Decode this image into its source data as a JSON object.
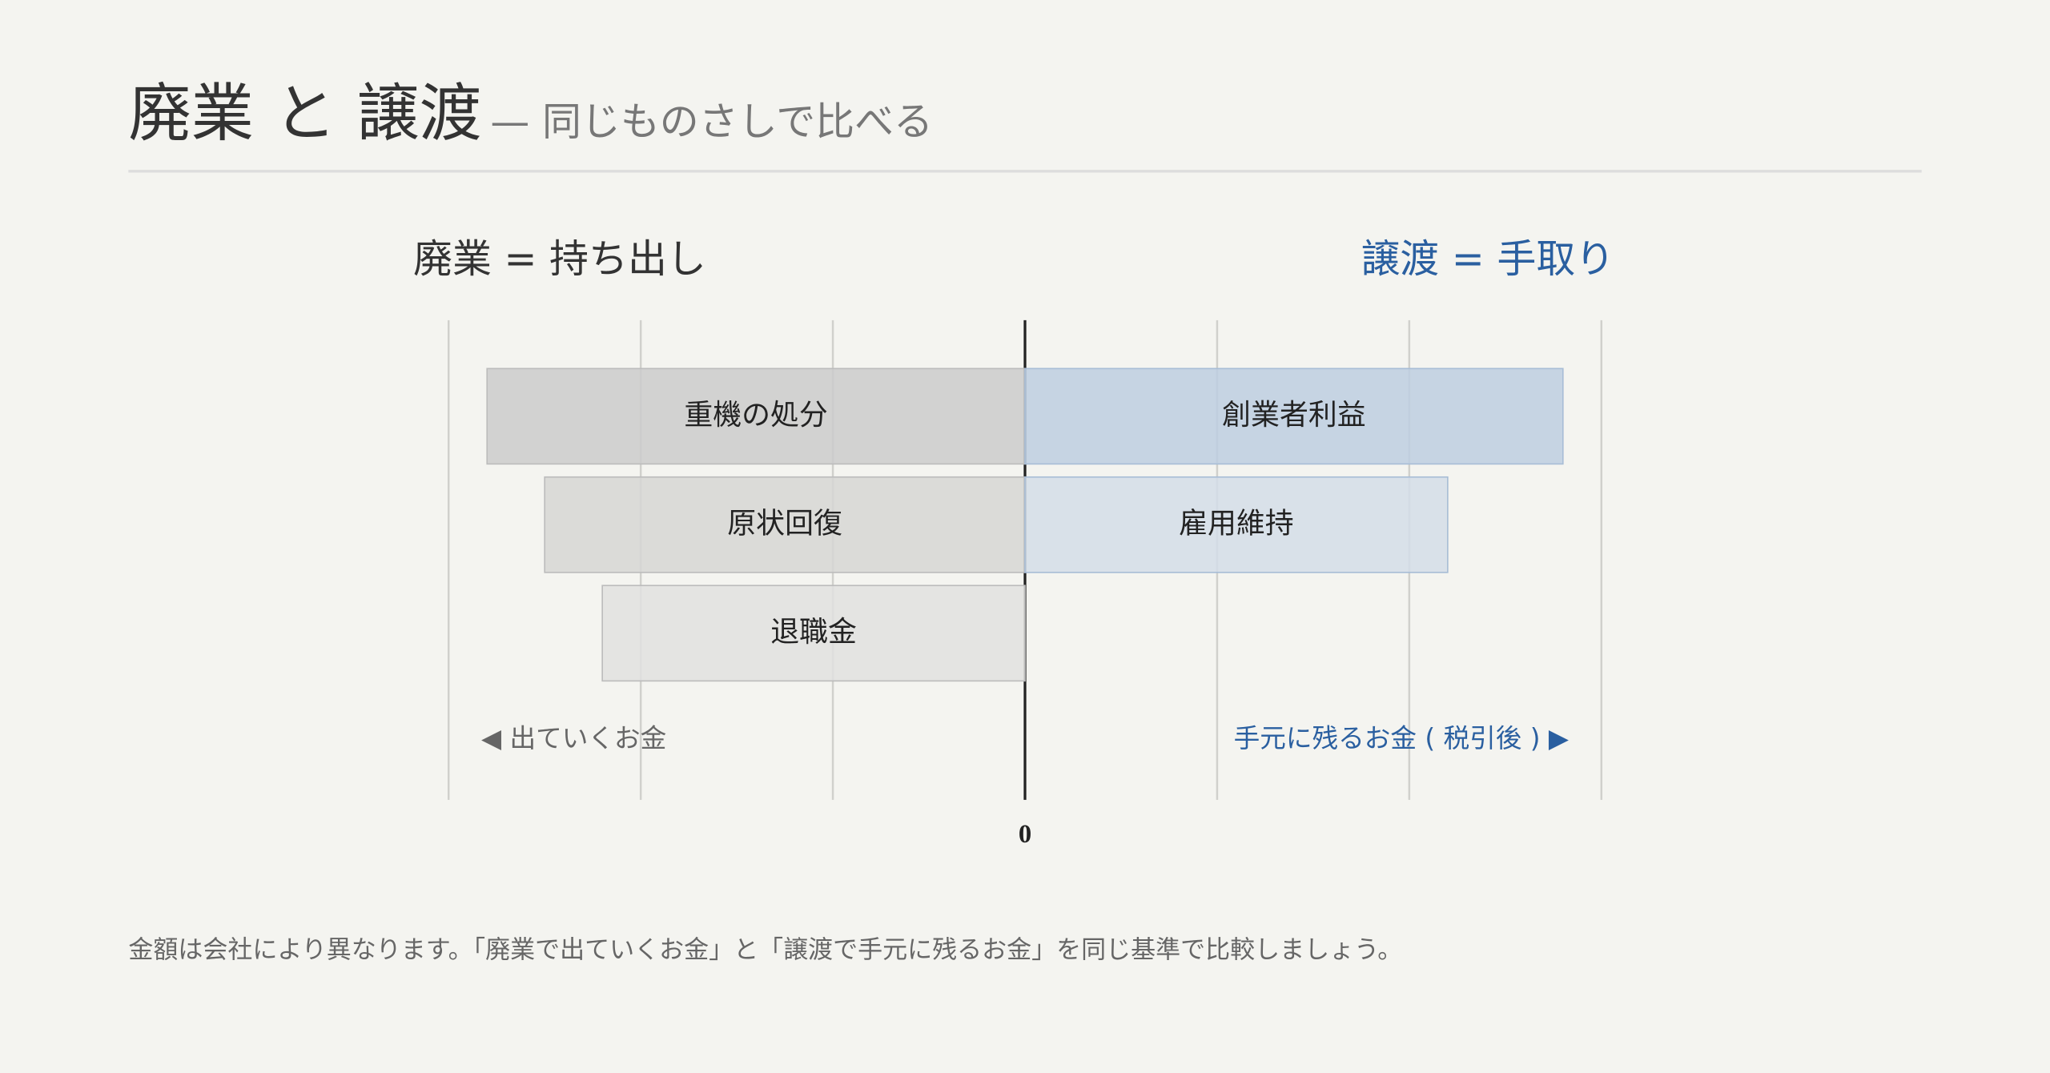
{
  "chart_data": {
    "type": "diverging_bar",
    "title": "廃業 と 譲渡",
    "subtitle": "— 同じものさしで比べる",
    "xlim": [
      -3,
      3
    ],
    "xticks": [
      0
    ],
    "grid": [
      -3,
      -2,
      -1,
      0,
      1,
      2,
      3
    ],
    "series": [
      {
        "name": "廃業 = 持ち出し",
        "color": "#333333",
        "categories": [
          "重機の処分",
          "原状回復",
          "退職金"
        ],
        "values": [
          -2.8,
          -2.5,
          -2.2
        ],
        "bar_colors": [
          "#cbcbcb",
          "#d6d6d4",
          "#e0e0df"
        ],
        "direction_label": "◀ 出ていくお金"
      },
      {
        "name": "譲渡 = 手取り",
        "color": "#2a5fa0",
        "categories": [
          "創業者利益",
          "雇用維持"
        ],
        "values": [
          2.8,
          2.2
        ],
        "bar_colors": [
          "#bdcee0",
          "#d3dde8"
        ],
        "direction_label": "手元に残るお金 ( 税引後 ) ▶"
      }
    ],
    "note": "金額は会社により異なります。「廃業で出ていくお金」と「譲渡で手元に残るお金」を同じ基準で比較しましょう。"
  }
}
